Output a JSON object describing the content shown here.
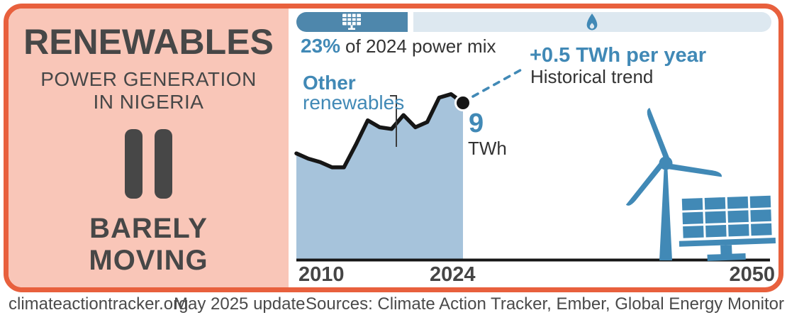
{
  "panel": {
    "title": "RENEWABLES",
    "subtitle_line1": "POWER GENERATION",
    "subtitle_line2": "IN NIGERIA",
    "verdict_line1": "BARELY",
    "verdict_line2": "MOVING",
    "status_icon": "pause-icon"
  },
  "mix_bar": {
    "renewables_pct": 23.4,
    "share_label": "23%",
    "share_suffix": "of 2024 power mix",
    "renewables_icon": "solar-panel-icon",
    "fossil_icon": "gas-flame-icon"
  },
  "annotations": {
    "series_label_bold": "Other",
    "series_label_rest": "renewables",
    "trend_value": "+0.5 TWh per year",
    "trend_label": "Historical trend",
    "end_value": "9",
    "end_unit": "TWh"
  },
  "chart_data": {
    "type": "area",
    "title": "Other renewables power generation in Nigeria",
    "unit": "TWh",
    "x": [
      2010,
      2011,
      2012,
      2013,
      2014,
      2015,
      2016,
      2017,
      2018,
      2019,
      2020,
      2021,
      2022,
      2023,
      2024
    ],
    "values": [
      6.1,
      5.8,
      5.6,
      5.3,
      5.3,
      6.6,
      8.0,
      7.6,
      7.5,
      8.3,
      7.6,
      7.9,
      9.3,
      9.5,
      9.0
    ],
    "end_point": {
      "year": 2024,
      "value": 9,
      "label": "9 TWh"
    },
    "trend_rate_label": "+0.5 TWh per year",
    "x_axis_labels": [
      "2010",
      "2024",
      "2050"
    ],
    "x_range": [
      2010,
      2050
    ],
    "ylim": [
      0,
      9
    ],
    "grid": false,
    "legend": false
  },
  "axis": {
    "tick_2010": "2010",
    "tick_2024": "2024",
    "tick_2050": "2050"
  },
  "footer": {
    "site": "climateactiontracker.org",
    "update": "May 2025 update",
    "sources": "Sources: Climate Action Tracker, Ember, Global Energy Monitor"
  },
  "colors": {
    "orange": "#e8603d",
    "salmon": "#f9c6b8",
    "blue": "#4189b6",
    "pill_blue": "#4e87ac",
    "track": "#dde8f0",
    "area_fill": "#a6c3db",
    "line": "#161616",
    "ink": "#333333"
  }
}
